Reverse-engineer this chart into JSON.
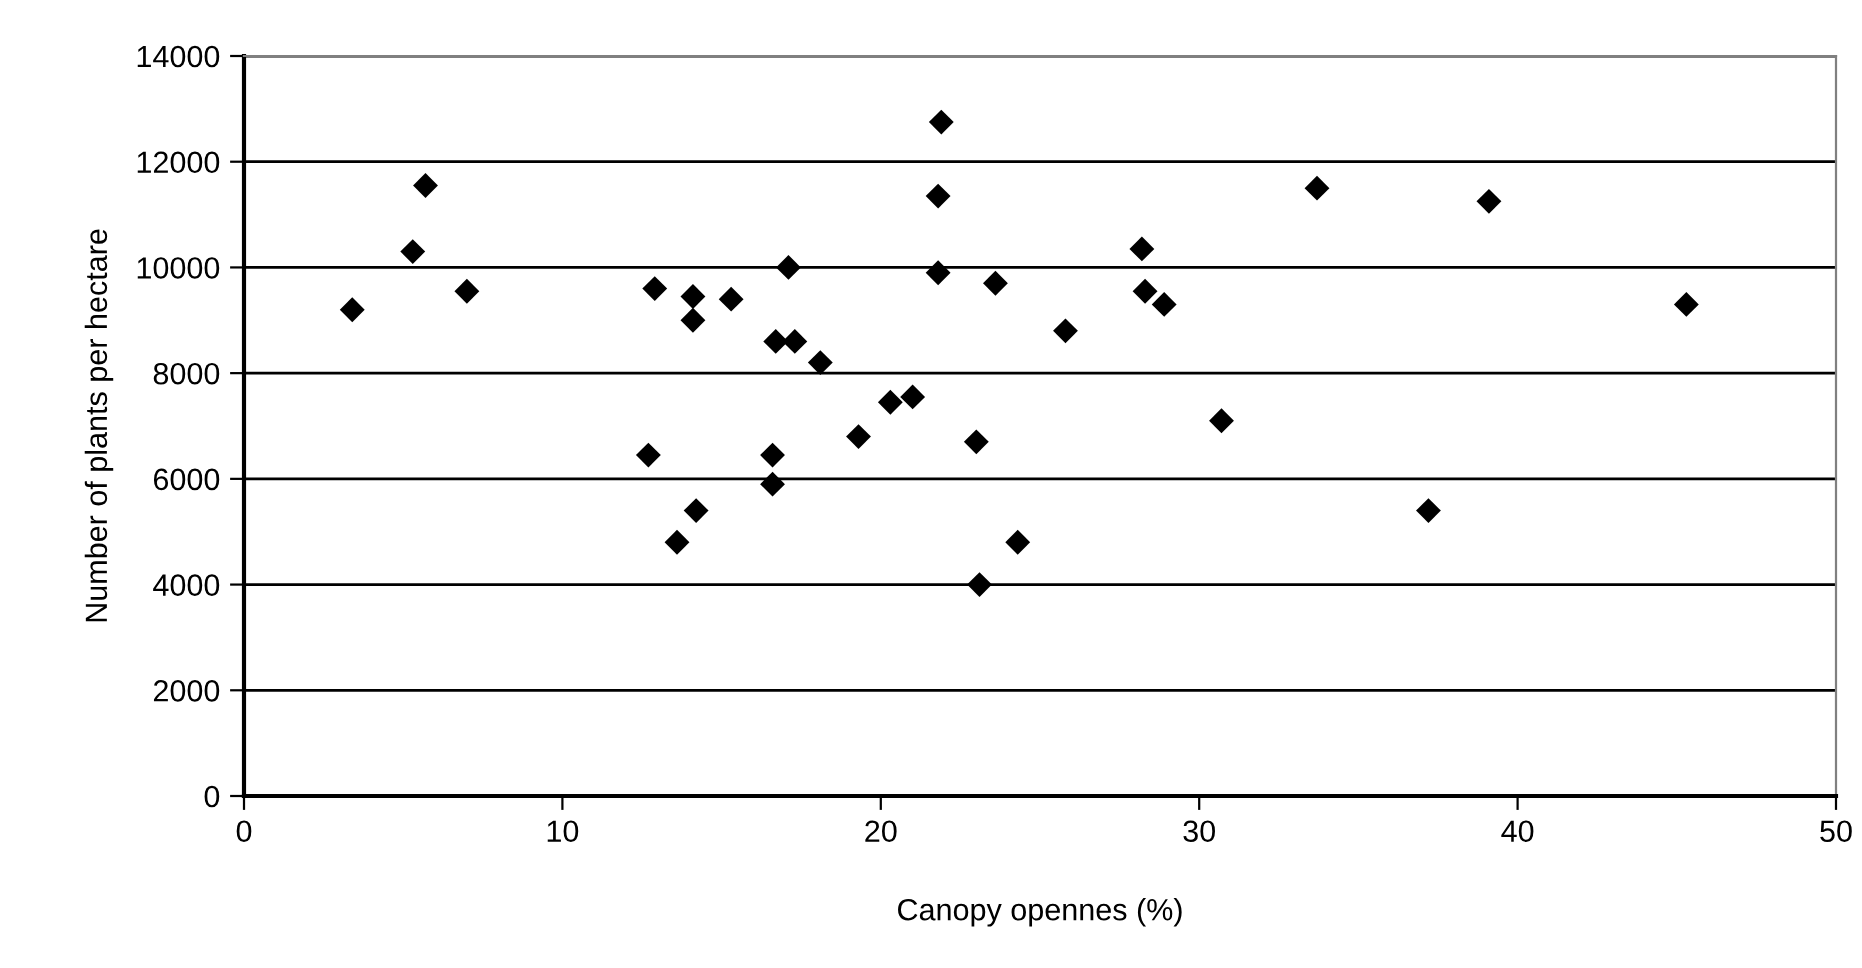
{
  "chart_data": {
    "type": "scatter",
    "xlabel": "Canopy opennes (%)",
    "ylabel": "Number of plants per hectare",
    "x": [
      3.4,
      5.3,
      5.7,
      7.0,
      12.7,
      12.9,
      13.6,
      14.1,
      14.1,
      14.2,
      15.3,
      16.6,
      16.6,
      16.7,
      17.1,
      17.3,
      18.1,
      19.3,
      20.3,
      21.0,
      21.8,
      21.9,
      21.8,
      23.0,
      23.1,
      23.6,
      24.3,
      25.8,
      28.2,
      28.3,
      28.9,
      30.7,
      33.7,
      37.2,
      39.1,
      45.3
    ],
    "series": [
      {
        "color": "#000000",
        "values": [
          9200,
          10300,
          11550,
          9550,
          6450,
          9600,
          4800,
          9450,
          9000,
          5400,
          9400,
          6450,
          5900,
          8600,
          10000,
          8600,
          8200,
          6800,
          7450,
          7550,
          11350,
          12750,
          9900,
          6700,
          4000,
          9700,
          4800,
          8800,
          10350,
          9550,
          9300,
          7100,
          11500,
          5400,
          11250,
          9300
        ]
      }
    ],
    "xlim": [
      0,
      50
    ],
    "xticks": [
      0,
      10,
      20,
      30,
      40,
      50
    ],
    "ylim": [
      0,
      14000
    ],
    "yticks": [
      0,
      2000,
      4000,
      6000,
      8000,
      10000,
      12000,
      14000
    ],
    "grid": "y",
    "marker": "diamond",
    "legend": false
  }
}
